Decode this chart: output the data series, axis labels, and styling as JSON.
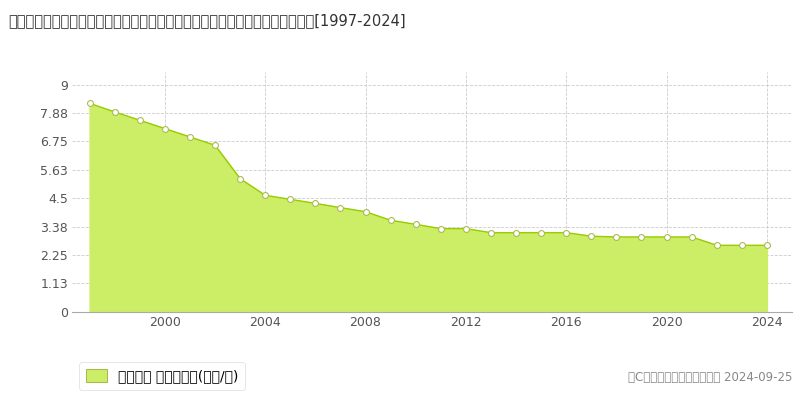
{
  "title": "長野県南佐久郡南牧村大字野辺山字二ツ山Ｓ０６番１７　基準地価　地価推移[1997-2024]",
  "years": [
    1997,
    1998,
    1999,
    2000,
    2001,
    2002,
    2003,
    2004,
    2005,
    2006,
    2007,
    2008,
    2009,
    2010,
    2011,
    2012,
    2013,
    2014,
    2015,
    2016,
    2017,
    2018,
    2019,
    2020,
    2021,
    2022,
    2023,
    2024
  ],
  "values": [
    8.26,
    7.92,
    7.59,
    7.26,
    6.93,
    6.6,
    5.28,
    4.62,
    4.46,
    4.3,
    4.13,
    3.97,
    3.63,
    3.47,
    3.3,
    3.3,
    3.14,
    3.14,
    3.14,
    3.14,
    3.0,
    2.97,
    2.97,
    2.97,
    2.97,
    2.64,
    2.64,
    2.64
  ],
  "fill_color": "#ccee66",
  "line_color": "#99cc00",
  "marker_facecolor": "#ffffff",
  "marker_edgecolor": "#aabb55",
  "background_color": "#ffffff",
  "grid_color": "#cccccc",
  "yticks": [
    0,
    1.13,
    2.25,
    3.38,
    4.5,
    5.63,
    6.75,
    7.88,
    9
  ],
  "ytick_labels": [
    "0",
    "1.13",
    "2.25",
    "3.38",
    "4.5",
    "5.63",
    "6.75",
    "7.88",
    "9"
  ],
  "xticks": [
    1996,
    2000,
    2004,
    2008,
    2012,
    2016,
    2020,
    2024
  ],
  "xtick_labels": [
    "",
    "2000",
    "2004",
    "2008",
    "2012",
    "2016",
    "2020",
    "2024"
  ],
  "ylim": [
    0,
    9.5
  ],
  "xlim": [
    1996.3,
    2025.0
  ],
  "legend_label": "基準地価 平均嵪単価(万円/嵪)",
  "copyright_text": "（C）土地価格ドットコム　 2024-09-25",
  "title_fontsize": 10.5,
  "tick_fontsize": 9,
  "legend_fontsize": 10,
  "copyright_fontsize": 8.5
}
